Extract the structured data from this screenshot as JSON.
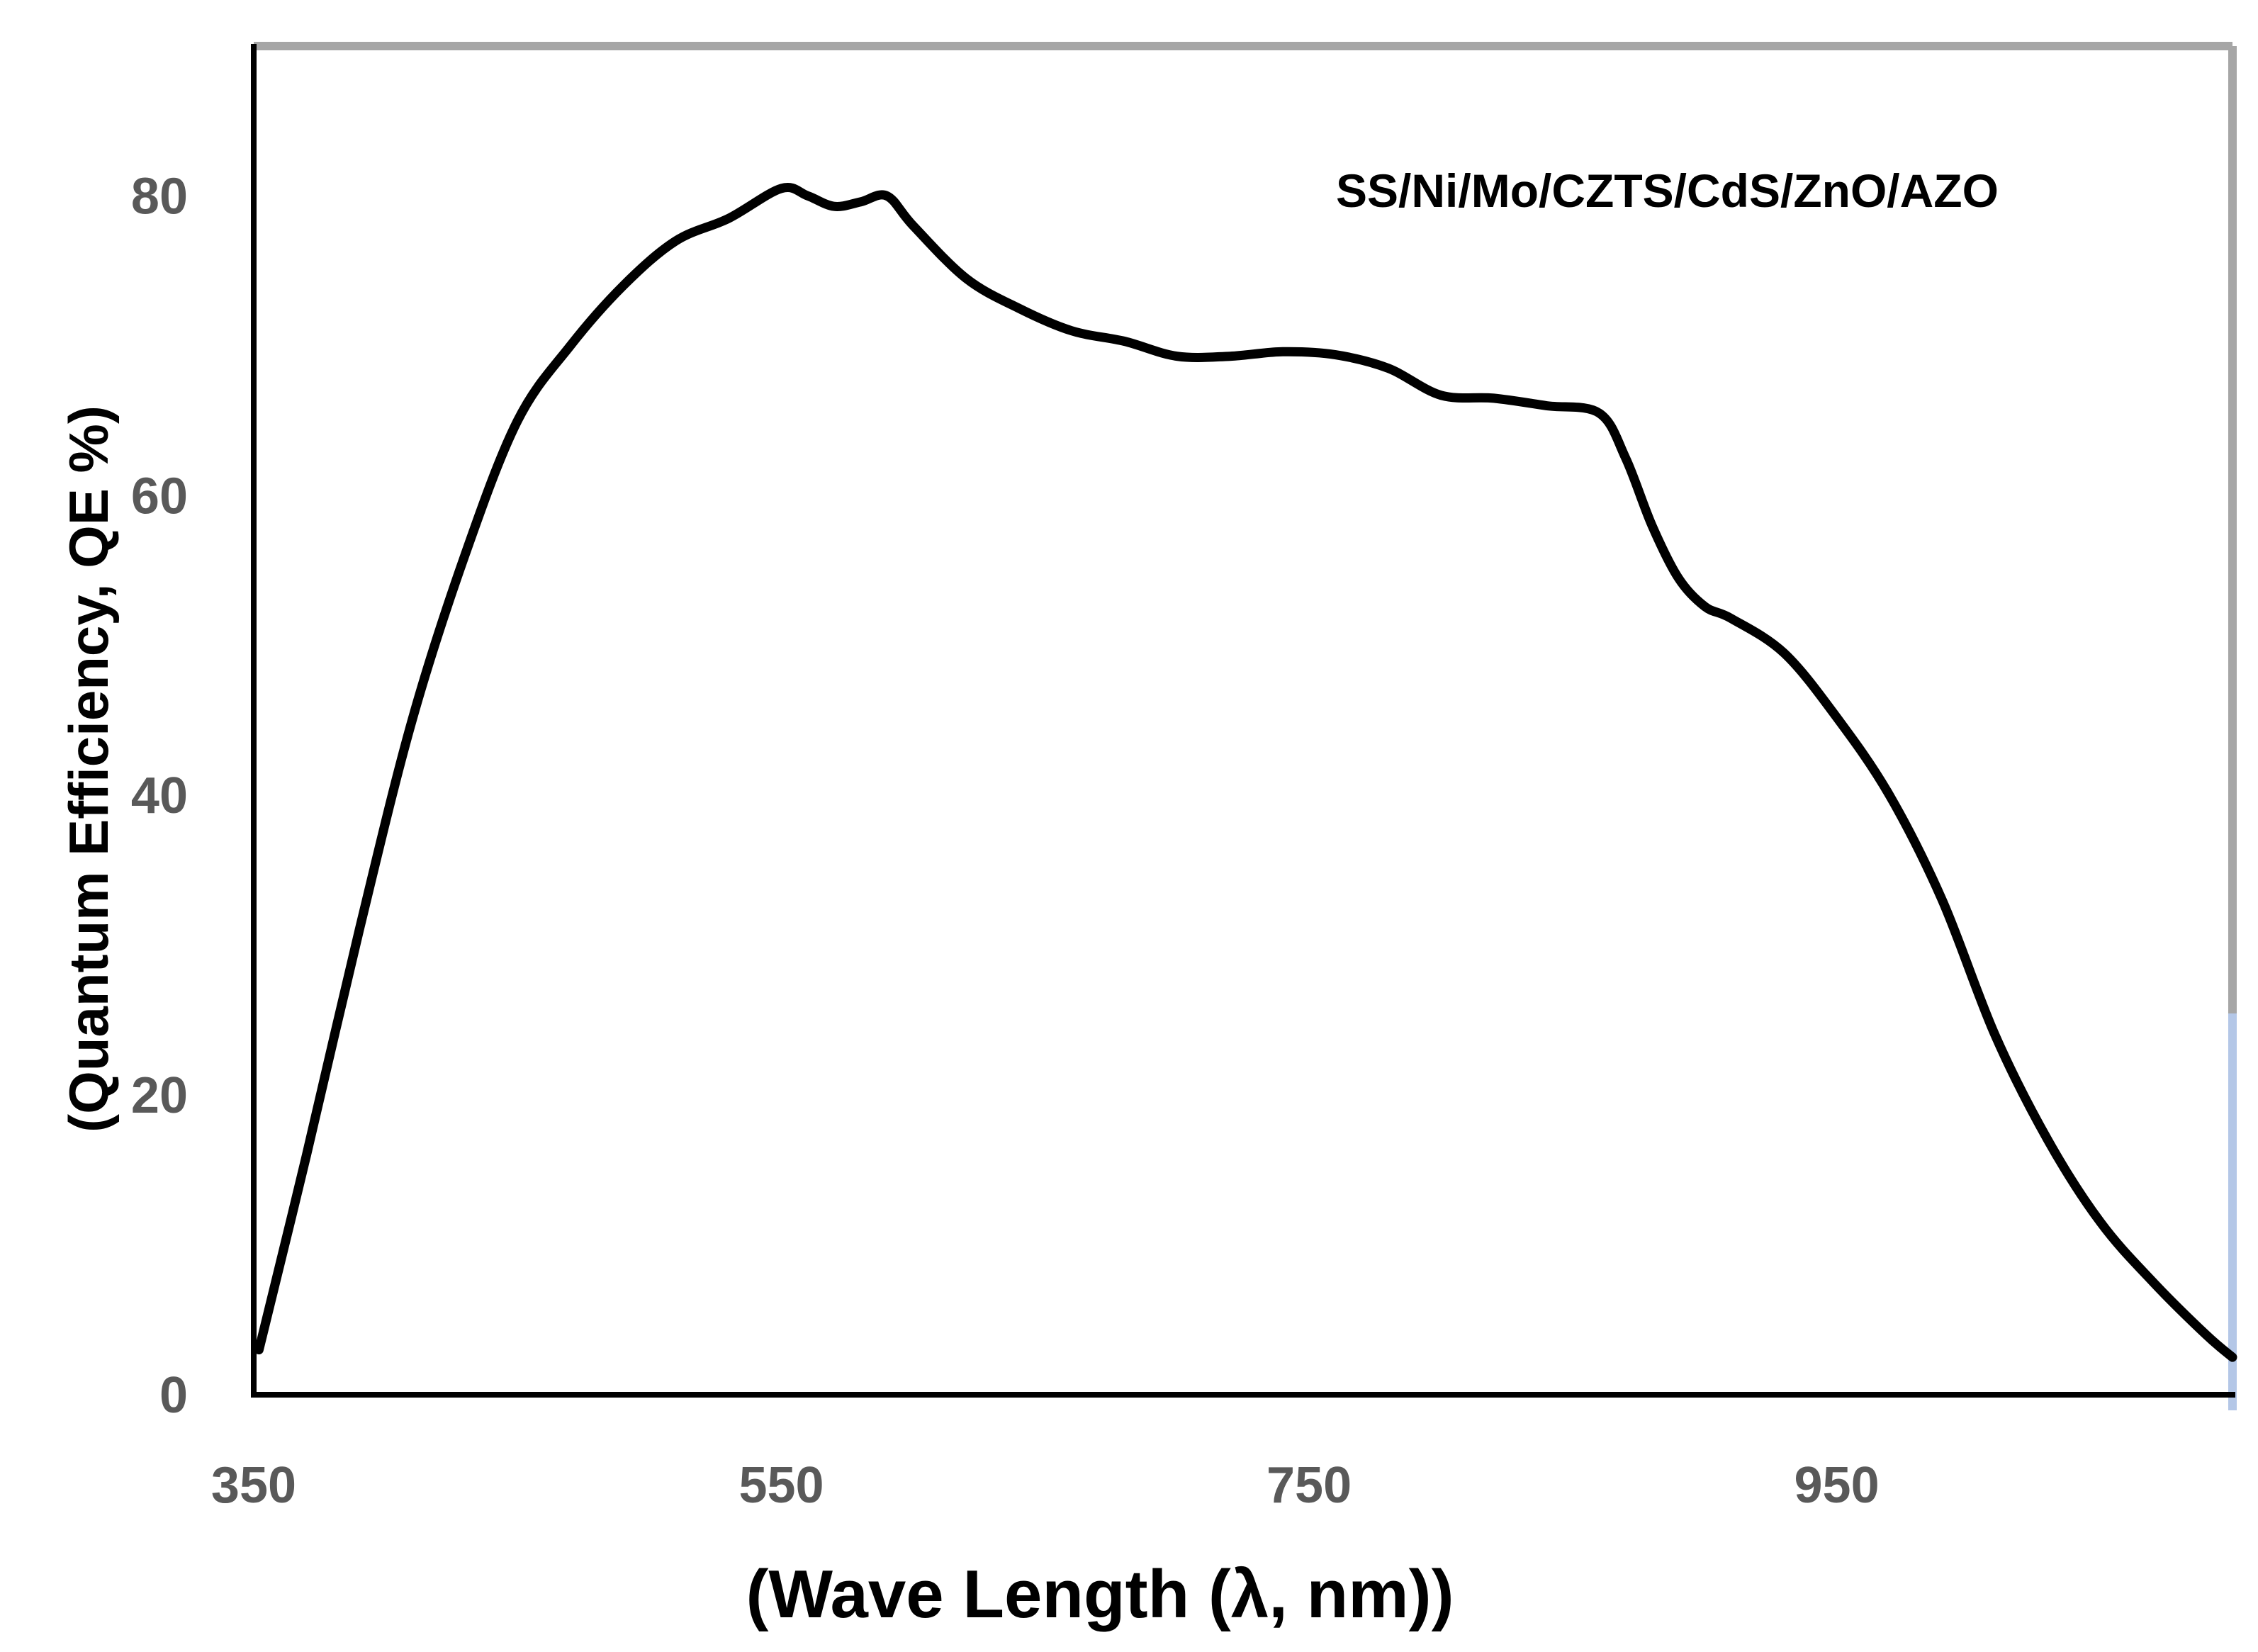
{
  "chart_data": {
    "type": "line",
    "title": "",
    "xlabel": "(Wave Length (λ, nm))",
    "ylabel": "(Quantum Efficiency, QE %)",
    "xlim": [
      350,
      1100
    ],
    "ylim": [
      0,
      90
    ],
    "x_ticks": [
      350,
      550,
      750,
      950
    ],
    "y_ticks": [
      0,
      20,
      40,
      60,
      80
    ],
    "grid": false,
    "annotation": "SS/Ni/Mo/CZTS/CdS/ZnO/AZO",
    "colors": {
      "line": "#000000",
      "frame": "#a6a6a6",
      "axis": "#000000",
      "tick_text": "#595959",
      "right_edge": "#b4c7e7"
    },
    "series": [
      {
        "name": "SS/Ni/Mo/CZTS/CdS/ZnO/AZO",
        "x": [
          352,
          370,
          390,
          410,
          430,
          450,
          470,
          490,
          510,
          530,
          550,
          560,
          570,
          580,
          590,
          600,
          620,
          640,
          660,
          680,
          700,
          720,
          740,
          760,
          780,
          800,
          820,
          840,
          860,
          870,
          880,
          890,
          900,
          910,
          930,
          950,
          970,
          990,
          1010,
          1030,
          1050,
          1070,
          1090,
          1100
        ],
        "y": [
          3,
          16,
          31,
          45,
          56,
          65,
          70,
          74,
          77,
          78.5,
          80.5,
          80,
          79.3,
          79.6,
          80,
          78,
          74.5,
          72.5,
          71,
          70.3,
          69.3,
          69.3,
          69.6,
          69.4,
          68.5,
          66.7,
          66.5,
          66,
          65.5,
          62.5,
          58,
          54.5,
          52.6,
          51.8,
          49.5,
          45.2,
          40,
          33,
          24,
          17,
          11.5,
          7.5,
          4,
          2.5
        ]
      }
    ]
  }
}
